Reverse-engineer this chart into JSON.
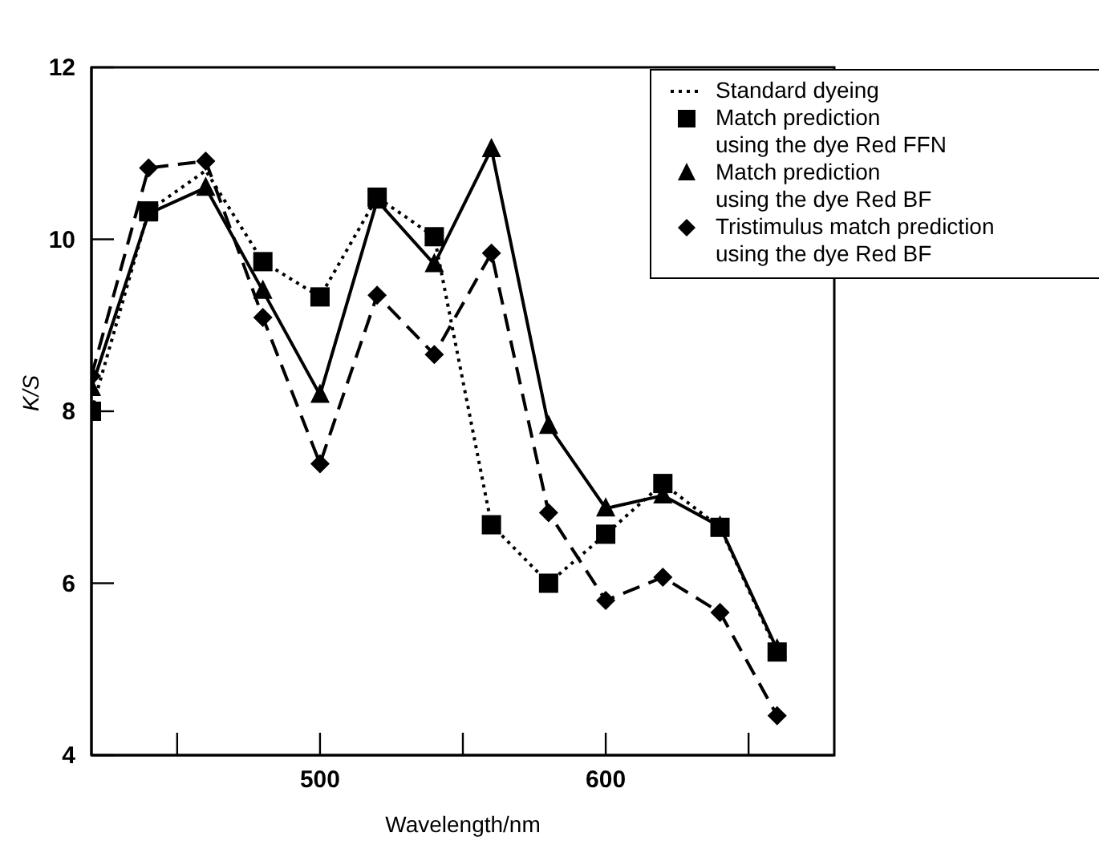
{
  "chart_data": {
    "type": "line",
    "xlabel": "Wavelength/nm",
    "ylabel": "K/S",
    "x": [
      420,
      440,
      460,
      480,
      500,
      520,
      540,
      560,
      580,
      600,
      620,
      640,
      660
    ],
    "series": [
      {
        "name": "Standard dyeing",
        "color": "#000000",
        "marker": "none",
        "line_style": "dotted",
        "values": [
          8.0,
          10.33,
          10.8,
          9.74,
          9.33,
          10.49,
          10.03,
          6.68,
          6.0,
          6.57,
          7.16,
          6.65,
          5.2
        ]
      },
      {
        "name": "Match prediction\nusing the dye Red FFN",
        "type": "scatter",
        "color": "#000000",
        "marker": "square",
        "values": [
          8.0,
          10.33,
          null,
          9.74,
          9.33,
          10.49,
          10.03,
          6.68,
          6.0,
          6.57,
          7.16,
          6.65,
          5.2
        ]
      },
      {
        "name": "Match prediction\nusing the dye Red BF",
        "color": "#000000",
        "marker": "triangle",
        "line_style": "solid",
        "values": [
          8.27,
          10.3,
          10.6,
          9.4,
          8.19,
          10.45,
          9.71,
          11.05,
          7.83,
          6.87,
          7.02,
          6.66,
          5.23
        ]
      },
      {
        "name": "Tristimulus match prediction\nusing the dye Red BF",
        "color": "#000000",
        "marker": "diamond",
        "line_style": "dashed",
        "values": [
          8.41,
          10.83,
          10.91,
          9.09,
          7.39,
          9.35,
          8.66,
          9.84,
          6.82,
          5.8,
          6.07,
          5.66,
          4.46
        ]
      }
    ],
    "xlim": [
      420,
      680
    ],
    "xticks": [
      {
        "value": 450,
        "label": null
      },
      500,
      {
        "value": 550,
        "label": null
      },
      600,
      {
        "value": 650,
        "label": null
      }
    ],
    "ylim": [
      4,
      12
    ],
    "yticks": [
      4,
      6,
      8,
      10,
      12
    ],
    "legend": "top right"
  }
}
